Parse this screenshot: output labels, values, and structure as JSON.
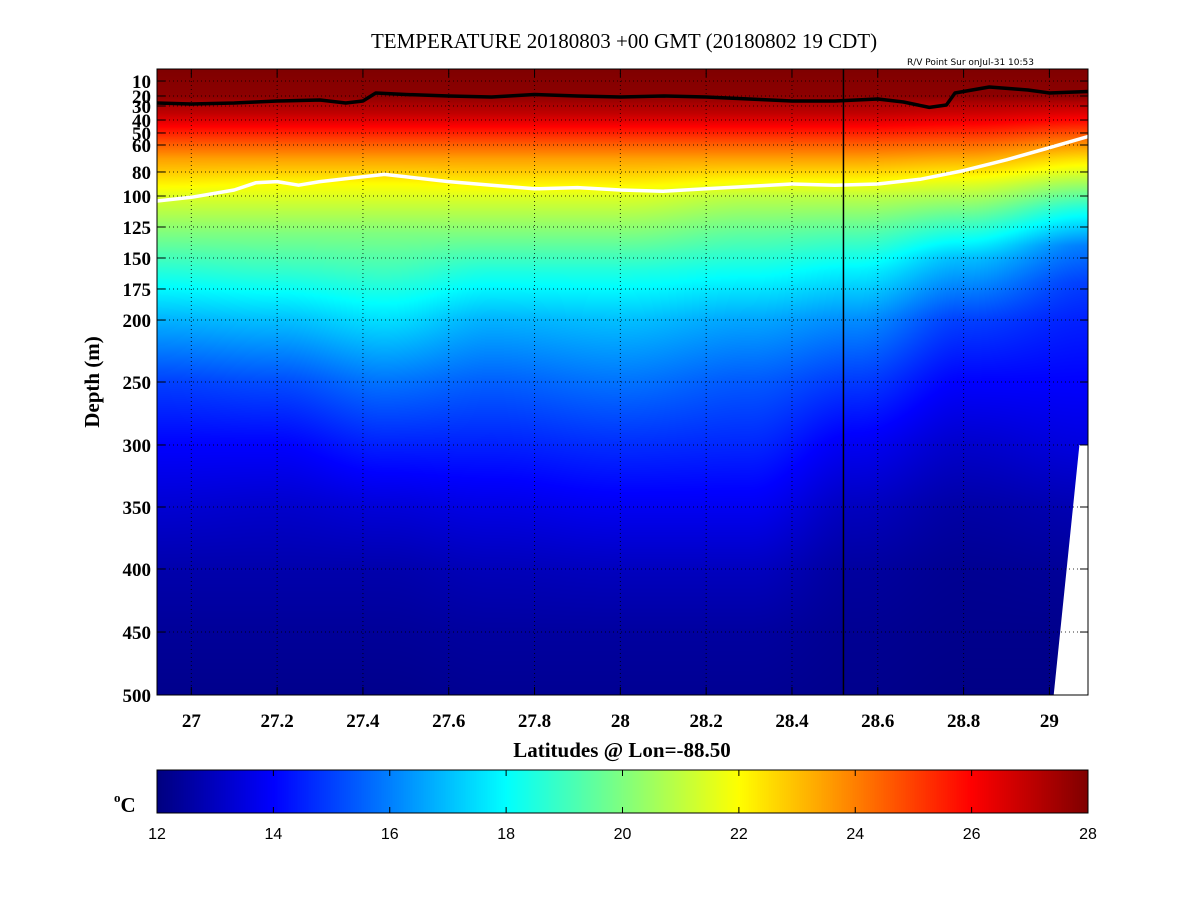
{
  "chart_data": {
    "type": "heatmap",
    "title": "TEMPERATURE 20180803 +00 GMT (20180802 19 CDT)",
    "subtitle": "R/V Point Sur onJul-31 10:53",
    "xlabel": "Latitudes @ Lon=-88.50",
    "ylabel": "Depth (m)",
    "xlim": [
      26.92,
      29.09
    ],
    "ylim": [
      500,
      0
    ],
    "x_ticks": [
      27,
      27.2,
      27.4,
      27.6,
      27.8,
      28,
      28.2,
      28.4,
      28.6,
      28.8,
      29
    ],
    "x_tick_labels": [
      "27",
      "27.2",
      "27.4",
      "27.6",
      "27.8",
      "28",
      "28.2",
      "28.4",
      "28.6",
      "28.8",
      "29"
    ],
    "y_ticks": [
      10,
      20,
      30,
      40,
      50,
      60,
      80,
      100,
      125,
      150,
      175,
      200,
      250,
      300,
      350,
      400,
      450,
      500
    ],
    "y_tick_labels": [
      "10",
      "20",
      "30",
      "40",
      "50",
      "60",
      "80",
      "100",
      "125",
      "150",
      "175",
      "200",
      "250",
      "300",
      "350",
      "400",
      "450",
      "500"
    ],
    "grid": true,
    "colormap": "jet",
    "colorbar": {
      "label": "oC",
      "range": [
        12,
        28
      ],
      "ticks": [
        12,
        14,
        16,
        18,
        20,
        22,
        24,
        26,
        28
      ],
      "tick_labels": [
        "12",
        "14",
        "16",
        "18",
        "20",
        "22",
        "24",
        "26",
        "28"
      ]
    },
    "vertical_marker_lat": 28.52,
    "contours": [
      {
        "color": "#000000",
        "points": [
          [
            26.92,
            27
          ],
          [
            27.0,
            28
          ],
          [
            27.1,
            27
          ],
          [
            27.2,
            25
          ],
          [
            27.3,
            24
          ],
          [
            27.36,
            27
          ],
          [
            27.4,
            25
          ],
          [
            27.43,
            18
          ],
          [
            27.5,
            19
          ],
          [
            27.6,
            20
          ],
          [
            27.7,
            21
          ],
          [
            27.8,
            19
          ],
          [
            27.9,
            20
          ],
          [
            28.0,
            21
          ],
          [
            28.1,
            20
          ],
          [
            28.2,
            21
          ],
          [
            28.3,
            23
          ],
          [
            28.4,
            25
          ],
          [
            28.5,
            25
          ],
          [
            28.6,
            23
          ],
          [
            28.66,
            26
          ],
          [
            28.72,
            31
          ],
          [
            28.76,
            29
          ],
          [
            28.78,
            18
          ],
          [
            28.86,
            14
          ],
          [
            28.95,
            16
          ],
          [
            29.0,
            18
          ],
          [
            29.09,
            17
          ]
        ]
      },
      {
        "color": "#ffffff",
        "points": [
          [
            26.92,
            104
          ],
          [
            27.0,
            101
          ],
          [
            27.1,
            95
          ],
          [
            27.15,
            89
          ],
          [
            27.2,
            88
          ],
          [
            27.25,
            91
          ],
          [
            27.3,
            88
          ],
          [
            27.4,
            84
          ],
          [
            27.45,
            82
          ],
          [
            27.5,
            84
          ],
          [
            27.6,
            88
          ],
          [
            27.7,
            91
          ],
          [
            27.8,
            94
          ],
          [
            27.9,
            93
          ],
          [
            28.0,
            95
          ],
          [
            28.1,
            96
          ],
          [
            28.2,
            94
          ],
          [
            28.3,
            92
          ],
          [
            28.4,
            90
          ],
          [
            28.5,
            91
          ],
          [
            28.6,
            90
          ],
          [
            28.7,
            86
          ],
          [
            28.8,
            79
          ],
          [
            28.9,
            71
          ],
          [
            29.0,
            62
          ],
          [
            29.09,
            53
          ]
        ]
      }
    ],
    "no_data_region": [
      [
        29.01,
        500
      ],
      [
        29.07,
        300
      ],
      [
        29.09,
        300
      ],
      [
        29.09,
        500
      ]
    ],
    "sections": [
      {
        "lat": 26.92,
        "profile": [
          [
            0,
            28
          ],
          [
            20,
            27.8
          ],
          [
            35,
            27
          ],
          [
            50,
            25.5
          ],
          [
            70,
            23.5
          ],
          [
            100,
            21.5
          ],
          [
            130,
            20
          ],
          [
            160,
            18.6
          ],
          [
            200,
            16.8
          ],
          [
            250,
            15
          ],
          [
            300,
            14
          ],
          [
            350,
            13.3
          ],
          [
            400,
            12.7
          ],
          [
            450,
            12.4
          ],
          [
            500,
            12.2
          ]
        ]
      },
      {
        "lat": 27.2,
        "profile": [
          [
            0,
            28
          ],
          [
            20,
            27.8
          ],
          [
            35,
            27
          ],
          [
            50,
            25.5
          ],
          [
            70,
            23.5
          ],
          [
            90,
            22
          ],
          [
            130,
            20
          ],
          [
            160,
            18.8
          ],
          [
            200,
            17
          ],
          [
            250,
            15.2
          ],
          [
            300,
            14
          ],
          [
            350,
            13.2
          ],
          [
            400,
            12.7
          ],
          [
            450,
            12.4
          ],
          [
            500,
            12.2
          ]
        ]
      },
      {
        "lat": 27.45,
        "profile": [
          [
            0,
            28
          ],
          [
            20,
            27.8
          ],
          [
            35,
            27
          ],
          [
            50,
            25.5
          ],
          [
            70,
            23.5
          ],
          [
            90,
            22
          ],
          [
            130,
            20
          ],
          [
            160,
            19
          ],
          [
            200,
            17.5
          ],
          [
            250,
            15.8
          ],
          [
            300,
            14.5
          ],
          [
            350,
            13.4
          ],
          [
            400,
            12.7
          ],
          [
            450,
            12.4
          ],
          [
            500,
            12.2
          ]
        ]
      },
      {
        "lat": 27.7,
        "profile": [
          [
            0,
            28
          ],
          [
            20,
            27.8
          ],
          [
            35,
            27
          ],
          [
            50,
            25.5
          ],
          [
            70,
            23.5
          ],
          [
            100,
            21.5
          ],
          [
            130,
            20
          ],
          [
            160,
            18.5
          ],
          [
            200,
            16.8
          ],
          [
            250,
            15.5
          ],
          [
            300,
            14.5
          ],
          [
            350,
            13.6
          ],
          [
            400,
            12.9
          ],
          [
            450,
            12.5
          ],
          [
            500,
            12.3
          ]
        ]
      },
      {
        "lat": 28.0,
        "profile": [
          [
            0,
            28
          ],
          [
            20,
            27.8
          ],
          [
            35,
            27
          ],
          [
            50,
            25.5
          ],
          [
            70,
            23.5
          ],
          [
            100,
            21.5
          ],
          [
            130,
            20
          ],
          [
            160,
            18.5
          ],
          [
            200,
            17
          ],
          [
            250,
            15.8
          ],
          [
            300,
            14.7
          ],
          [
            350,
            13.8
          ],
          [
            400,
            13
          ],
          [
            450,
            12.5
          ],
          [
            500,
            12.3
          ]
        ]
      },
      {
        "lat": 28.3,
        "profile": [
          [
            0,
            28
          ],
          [
            20,
            27.8
          ],
          [
            35,
            27
          ],
          [
            50,
            25.5
          ],
          [
            70,
            23.5
          ],
          [
            100,
            21
          ],
          [
            130,
            19.5
          ],
          [
            160,
            18.2
          ],
          [
            200,
            16.6
          ],
          [
            250,
            15.4
          ],
          [
            300,
            14.6
          ],
          [
            350,
            13.8
          ],
          [
            400,
            13
          ],
          [
            450,
            12.5
          ],
          [
            500,
            12.3
          ]
        ]
      },
      {
        "lat": 28.55,
        "profile": [
          [
            0,
            28
          ],
          [
            20,
            27.8
          ],
          [
            35,
            27
          ],
          [
            50,
            25.5
          ],
          [
            70,
            23.5
          ],
          [
            100,
            21
          ],
          [
            130,
            19.3
          ],
          [
            160,
            17.8
          ],
          [
            200,
            16.2
          ],
          [
            250,
            14.9
          ],
          [
            300,
            13.8
          ],
          [
            350,
            13
          ],
          [
            400,
            12.5
          ],
          [
            450,
            12.3
          ],
          [
            500,
            12.2
          ]
        ]
      },
      {
        "lat": 28.8,
        "profile": [
          [
            0,
            28
          ],
          [
            20,
            27.8
          ],
          [
            35,
            26.8
          ],
          [
            50,
            25.3
          ],
          [
            70,
            23.3
          ],
          [
            90,
            21.5
          ],
          [
            120,
            19.2
          ],
          [
            150,
            17
          ],
          [
            200,
            15
          ],
          [
            250,
            14
          ],
          [
            300,
            13.2
          ],
          [
            350,
            12.6
          ],
          [
            400,
            12.3
          ],
          [
            450,
            12.2
          ],
          [
            500,
            12.1
          ]
        ]
      },
      {
        "lat": 29.09,
        "profile": [
          [
            0,
            28
          ],
          [
            20,
            27.8
          ],
          [
            35,
            26.5
          ],
          [
            50,
            24.8
          ],
          [
            70,
            22.5
          ],
          [
            90,
            20.5
          ],
          [
            110,
            18.5
          ],
          [
            140,
            16
          ],
          [
            170,
            15
          ],
          [
            200,
            14.5
          ],
          [
            250,
            14
          ],
          [
            300,
            13.5
          ],
          [
            350,
            12.8
          ],
          [
            400,
            12.4
          ],
          [
            450,
            12.2
          ],
          [
            500,
            12.1
          ]
        ]
      }
    ]
  }
}
